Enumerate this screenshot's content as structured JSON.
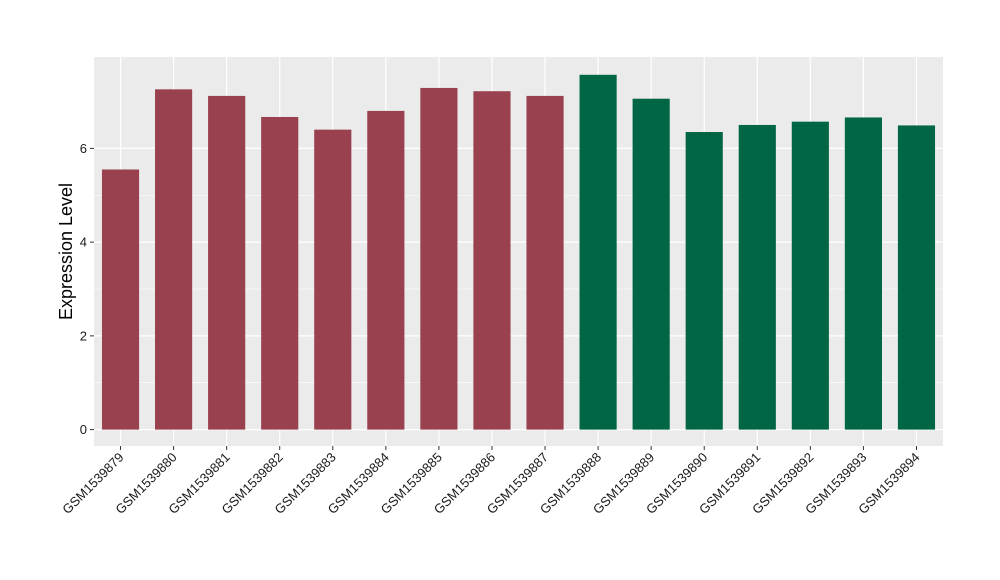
{
  "chart_data": {
    "type": "bar",
    "title": "",
    "xlabel": "",
    "ylabel": "Expression Level",
    "ylim": [
      -0.35,
      7.95
    ],
    "yticks": [
      0,
      2,
      4,
      6
    ],
    "grid": true,
    "categories": [
      "GSM1539879",
      "GSM1539880",
      "GSM1539881",
      "GSM1539882",
      "GSM1539883",
      "GSM1539884",
      "GSM1539885",
      "GSM1539886",
      "GSM1539887",
      "GSM1539888",
      "GSM1539889",
      "GSM1539890",
      "GSM1539891",
      "GSM1539892",
      "GSM1539893",
      "GSM1539894"
    ],
    "values": [
      5.55,
      7.26,
      7.12,
      6.67,
      6.4,
      6.8,
      7.29,
      7.22,
      7.12,
      7.57,
      7.06,
      6.35,
      6.5,
      6.57,
      6.66,
      6.49
    ],
    "groups": [
      0,
      0,
      0,
      0,
      0,
      0,
      0,
      0,
      0,
      1,
      1,
      1,
      1,
      1,
      1,
      1
    ],
    "colors": [
      "#99414f",
      "#006645"
    ],
    "panel_background": "#ebebeb",
    "grid_color": "#ffffff"
  }
}
